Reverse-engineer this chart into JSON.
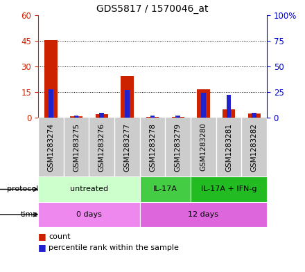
{
  "title": "GDS5817 / 1570046_at",
  "samples": [
    "GSM1283274",
    "GSM1283275",
    "GSM1283276",
    "GSM1283277",
    "GSM1283278",
    "GSM1283279",
    "GSM1283280",
    "GSM1283281",
    "GSM1283282"
  ],
  "count_values": [
    45.5,
    0.8,
    2.0,
    24.5,
    0.5,
    0.5,
    16.5,
    5.0,
    2.5
  ],
  "percentile_values": [
    28,
    2,
    5,
    27,
    2,
    2,
    24,
    22,
    5
  ],
  "left_ylim": [
    0,
    60
  ],
  "right_ylim": [
    0,
    100
  ],
  "left_yticks": [
    0,
    15,
    30,
    45,
    60
  ],
  "right_yticks": [
    0,
    25,
    50,
    75,
    100
  ],
  "right_yticklabels": [
    "0",
    "25",
    "50",
    "75",
    "100%"
  ],
  "bar_color": "#cc2200",
  "percentile_color": "#2222cc",
  "protocol_groups": [
    {
      "label": "untreated",
      "start": 0,
      "end": 4,
      "color": "#ccffcc"
    },
    {
      "label": "IL-17A",
      "start": 4,
      "end": 6,
      "color": "#44cc44"
    },
    {
      "label": "IL-17A + IFN-g",
      "start": 6,
      "end": 9,
      "color": "#22bb22"
    }
  ],
  "time_groups": [
    {
      "label": "0 days",
      "start": 0,
      "end": 4,
      "color": "#ee88ee"
    },
    {
      "label": "12 days",
      "start": 4,
      "end": 9,
      "color": "#dd66dd"
    }
  ],
  "left_axis_color": "#cc2200",
  "right_axis_color": "#0000cc",
  "grid_color": "#000000",
  "plot_bg_color": "#ffffff",
  "xlabel_bg_color": "#cccccc",
  "legend_count_label": "count",
  "legend_percentile_label": "percentile rank within the sample",
  "bar_width": 0.5,
  "blue_square_size": 0.18
}
